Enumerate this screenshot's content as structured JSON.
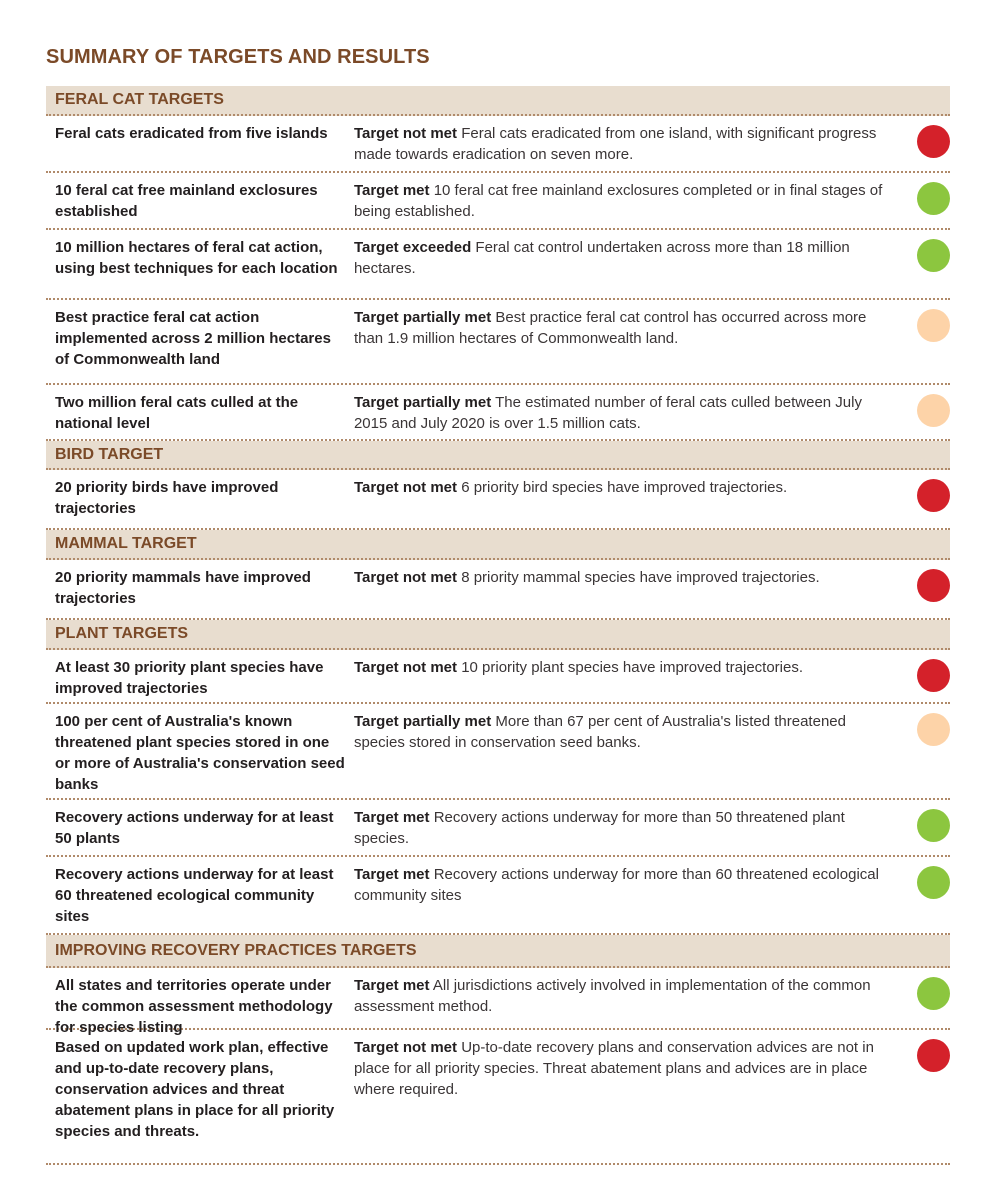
{
  "title": "SUMMARY OF TARGETS AND RESULTS",
  "colors": {
    "not_met": "#d4212a",
    "met": "#8cc63f",
    "partial": "#fdd3a8",
    "header_bg": "#e8ddcf",
    "brown": "#7b4a28"
  },
  "sections": [
    {
      "heading": "FERAL CAT TARGETS",
      "rows": [
        {
          "target": "Feral cats eradicated from five islands",
          "status": "Target not met",
          "detail": "Feral cats eradicated from one island, with significant progress made towards eradication on seven more.",
          "indicator": "not_met"
        },
        {
          "target": "10 feral cat free mainland exclosures established",
          "status": "Target met",
          "detail": "10 feral cat free mainland exclosures completed or in final stages of being established.",
          "indicator": "met"
        },
        {
          "target": "10 million hectares of feral cat action, using best techniques for each location",
          "status": "Target exceeded",
          "detail": "Feral cat control undertaken across more than 18 million hectares.",
          "indicator": "met"
        },
        {
          "target": "Best practice feral cat action implemented across 2 million hectares of Commonwealth land",
          "status": "Target partially met",
          "detail": "Best practice feral cat control has occurred across more than 1.9 million hectares of Commonwealth land.",
          "indicator": "partial"
        },
        {
          "target": "Two million feral cats culled at the national level",
          "status": "Target partially met",
          "detail": "The estimated number of feral cats culled between July 2015 and July 2020 is over 1.5 million cats.",
          "indicator": "partial"
        }
      ]
    },
    {
      "heading": "BIRD TARGET",
      "rows": [
        {
          "target": "20 priority birds have improved trajectories",
          "status": "Target not met",
          "detail": "6 priority bird species have improved trajectories.",
          "indicator": "not_met"
        }
      ]
    },
    {
      "heading": "MAMMAL TARGET",
      "rows": [
        {
          "target": "20 priority mammals have improved trajectories",
          "status": "Target not met",
          "detail": "8 priority mammal species have improved trajectories.",
          "indicator": "not_met"
        }
      ]
    },
    {
      "heading": "PLANT TARGETS",
      "rows": [
        {
          "target": "At least 30 priority plant species have improved trajectories",
          "status": "Target not met",
          "detail": "10 priority plant species have improved trajectories.",
          "indicator": "not_met"
        },
        {
          "target": "100 per cent of Australia's known threatened plant species stored in one or more of Australia's conservation seed banks",
          "status": "Target partially met",
          "detail": "More than 67 per cent of Australia's listed threatened species stored in conservation seed banks.",
          "indicator": "partial"
        },
        {
          "target": "Recovery actions underway for at least 50 plants",
          "status": "Target met",
          "detail": "Recovery actions underway for more than 50 threatened plant species.",
          "indicator": "met"
        },
        {
          "target": "Recovery actions underway for at least 60 threatened ecological community sites",
          "status": "Target met",
          "detail": "Recovery actions underway for more than 60 threatened ecological community sites",
          "indicator": "met"
        }
      ]
    },
    {
      "heading": "IMPROVING RECOVERY PRACTICES TARGETS",
      "rows": [
        {
          "target": "All states and territories operate under the common assessment methodology for species listing",
          "status": "Target met",
          "detail": "All jurisdictions actively involved in implementation of the common assessment method.",
          "indicator": "met"
        },
        {
          "target": "Based on updated work plan, effective and up-to-date recovery plans, conservation advices and threat abatement plans in place for all priority species and threats.",
          "status": "Target not met",
          "detail": "Up-to-date recovery plans and conservation advices are not in place for all priority species. Threat abatement plans and advices are in place where required.",
          "indicator": "not_met"
        }
      ]
    }
  ]
}
